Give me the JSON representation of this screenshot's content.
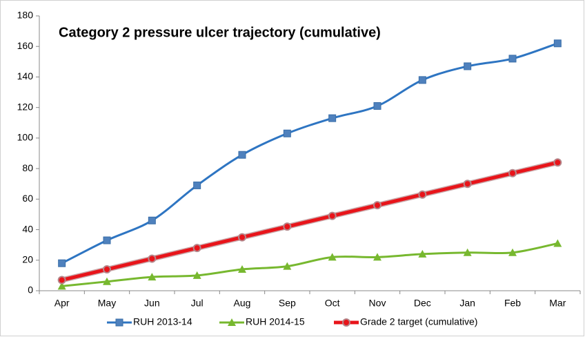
{
  "chart_data": {
    "type": "line",
    "title": "Category 2 pressure ulcer trajectory (cumulative)",
    "categories": [
      "Apr",
      "May",
      "Jun",
      "Jul",
      "Aug",
      "Sep",
      "Oct",
      "Nov",
      "Dec",
      "Jan",
      "Feb",
      "Mar"
    ],
    "series": [
      {
        "name": "RUH 2013-14",
        "color": "#2e75c2",
        "marker": "square",
        "values": [
          18,
          33,
          46,
          69,
          89,
          103,
          113,
          121,
          138,
          147,
          152,
          162
        ]
      },
      {
        "name": "RUH 2014-15",
        "color": "#77b82f",
        "marker": "triangle",
        "values": [
          3,
          6,
          9,
          10,
          14,
          16,
          22,
          22,
          24,
          25,
          25,
          31
        ]
      },
      {
        "name": "Grade 2 target (cumulative)",
        "color": "#e8141a",
        "marker": "circle",
        "values": [
          7,
          14,
          21,
          28,
          35,
          42,
          49,
          56,
          63,
          70,
          77,
          84
        ]
      }
    ],
    "ylim": [
      0,
      180
    ],
    "yticks": [
      0,
      20,
      40,
      60,
      80,
      100,
      120,
      140,
      160,
      180
    ],
    "grid": false,
    "legend": "bottom"
  }
}
